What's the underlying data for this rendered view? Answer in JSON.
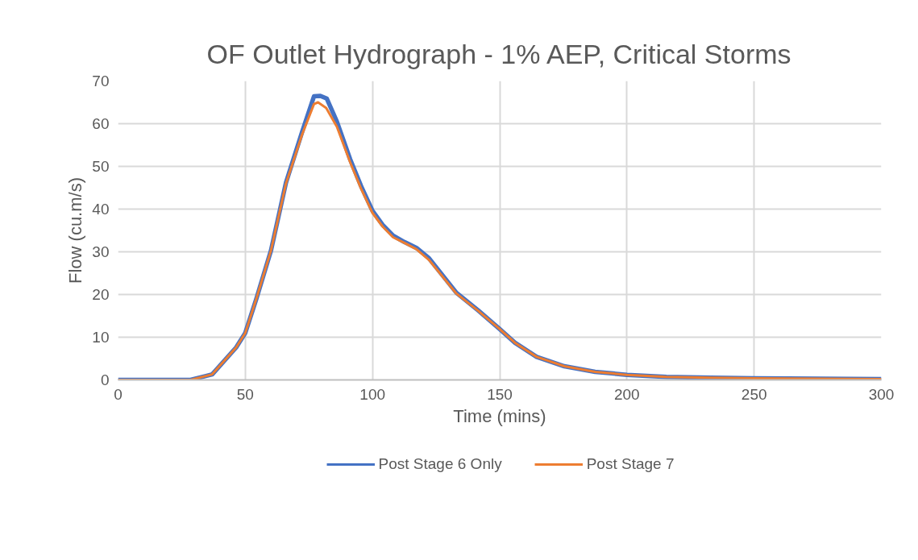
{
  "chart_data": {
    "type": "line",
    "title": "OF Outlet Hydrograph - 1% AEP, Critical Storms",
    "xlabel": "Time (mins)",
    "ylabel": "Flow (cu.m/s)",
    "xlim": [
      0,
      300
    ],
    "ylim": [
      0,
      70
    ],
    "xticks": [
      0,
      50,
      100,
      150,
      200,
      250,
      300
    ],
    "yticks": [
      0,
      10,
      20,
      30,
      40,
      50,
      60,
      70
    ],
    "grid": true,
    "legend": "bottom",
    "series": [
      {
        "name": "Post Stage 6 Only",
        "color": "#4472c4",
        "x": [
          0,
          28.5,
          37,
          46.4,
          50,
          54.3,
          60.1,
          66,
          72.3,
          77,
          79.5,
          82,
          86,
          91.2,
          95.5,
          100,
          104,
          108.1,
          112.5,
          117.3,
          122.2,
          133,
          141.5,
          150,
          156,
          164.5,
          175.4,
          187.5,
          200,
          215.5,
          233,
          250,
          300
        ],
        "values": [
          0,
          0,
          1.3,
          7.6,
          11,
          18.9,
          30.3,
          46.2,
          58,
          66.4,
          66.5,
          65.9,
          60.5,
          51.7,
          45.4,
          39.6,
          36.3,
          33.8,
          32.3,
          30.9,
          28.5,
          20.4,
          16.3,
          11.9,
          8.7,
          5.4,
          3.2,
          1.9,
          1.2,
          0.7,
          0.5,
          0.4,
          0.2
        ]
      },
      {
        "name": "Post Stage 7",
        "color": "#ed7d31",
        "x": [
          0,
          28.5,
          37,
          46.4,
          50,
          54.3,
          60.1,
          66,
          72.3,
          77,
          78.6,
          81.8,
          86,
          91.2,
          95.5,
          100,
          104,
          108.1,
          112.5,
          117.3,
          122.2,
          133,
          141.5,
          150,
          156,
          164.5,
          175.4,
          187.5,
          200,
          215.5,
          233,
          250,
          300
        ],
        "values": [
          0,
          0,
          1.3,
          7.6,
          11,
          18.9,
          30.3,
          46,
          57.4,
          64.6,
          65,
          63.7,
          59.3,
          51,
          44.8,
          39.1,
          35.9,
          33.4,
          32.1,
          30.6,
          28.1,
          20.2,
          16.2,
          11.9,
          8.7,
          5.4,
          3.2,
          1.9,
          1.2,
          0.7,
          0.5,
          0.4,
          0.2
        ]
      }
    ]
  }
}
